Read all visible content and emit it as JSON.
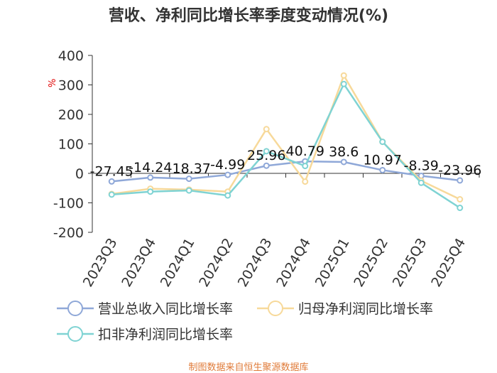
{
  "title": "营收、净利同比增长率季度变动情况(%)",
  "footer": "制图数据来自恒生聚源数据库",
  "chart_data": {
    "type": "line",
    "categories": [
      "2023Q3",
      "2023Q4",
      "2024Q1",
      "2024Q2",
      "2024Q3",
      "2024Q4",
      "2025Q1",
      "2025Q2",
      "2025Q3",
      "2025Q4"
    ],
    "ylabel": "%",
    "ylim": [
      -200,
      400
    ],
    "yticks": [
      400,
      300,
      200,
      100,
      0,
      -100,
      -200
    ],
    "grid": false,
    "legend_position": "bottom",
    "series": [
      {
        "name": "营业总收入同比增长率",
        "color": "#8fa8d8",
        "values": [
          -27.45,
          -14.24,
          -18.37,
          -4.99,
          25.96,
          40.79,
          38.6,
          10.97,
          -8.39,
          -23.96
        ],
        "labels": [
          "-27.45",
          "-14.24",
          "-18.37",
          "-4.99",
          "25.96",
          "40.79",
          "38.6",
          "10.97",
          "-8.39",
          "-23.96"
        ]
      },
      {
        "name": "归母净利润同比增长率",
        "color": "#f7d99a",
        "values": [
          -70,
          -52,
          -55,
          -62,
          150,
          -28,
          332,
          107,
          -25,
          -88
        ]
      },
      {
        "name": "扣非净利润同比增长率",
        "color": "#7fd3d3",
        "values": [
          -72,
          -62,
          -58,
          -75,
          75,
          25,
          303,
          107,
          -32,
          -117
        ]
      }
    ]
  }
}
